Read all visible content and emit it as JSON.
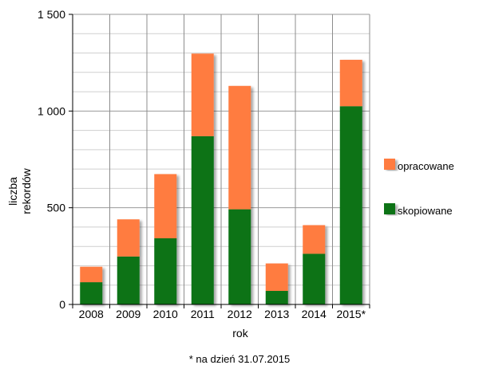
{
  "chart_data": {
    "type": "bar",
    "stacked": true,
    "categories": [
      "2008",
      "2009",
      "2010",
      "2011",
      "2012",
      "2013",
      "2014",
      "2015*"
    ],
    "series": [
      {
        "name": "skopiowane",
        "color": "#0b7317",
        "values": [
          115,
          248,
          342,
          870,
          492,
          70,
          262,
          1025
        ]
      },
      {
        "name": "opracowane",
        "color": "#ff7b41",
        "values": [
          80,
          192,
          332,
          427,
          638,
          142,
          148,
          240
        ]
      }
    ],
    "xlabel": "rok",
    "ylabel_lines": [
      "liczba",
      "rekordów"
    ],
    "ylim": [
      0,
      1500
    ],
    "yticks": [
      0,
      500,
      1000,
      1500
    ],
    "ytick_labels": [
      "0",
      "500",
      "1 000",
      "1 500"
    ],
    "minor_grid_step": 100,
    "grid": true,
    "legend": {
      "placement": "right",
      "items": [
        {
          "label": "opracowane",
          "color": "#ff7b41"
        },
        {
          "label": "skopiowane",
          "color": "#0b7317"
        }
      ]
    },
    "note": "* na dzień 31.07.2015"
  }
}
